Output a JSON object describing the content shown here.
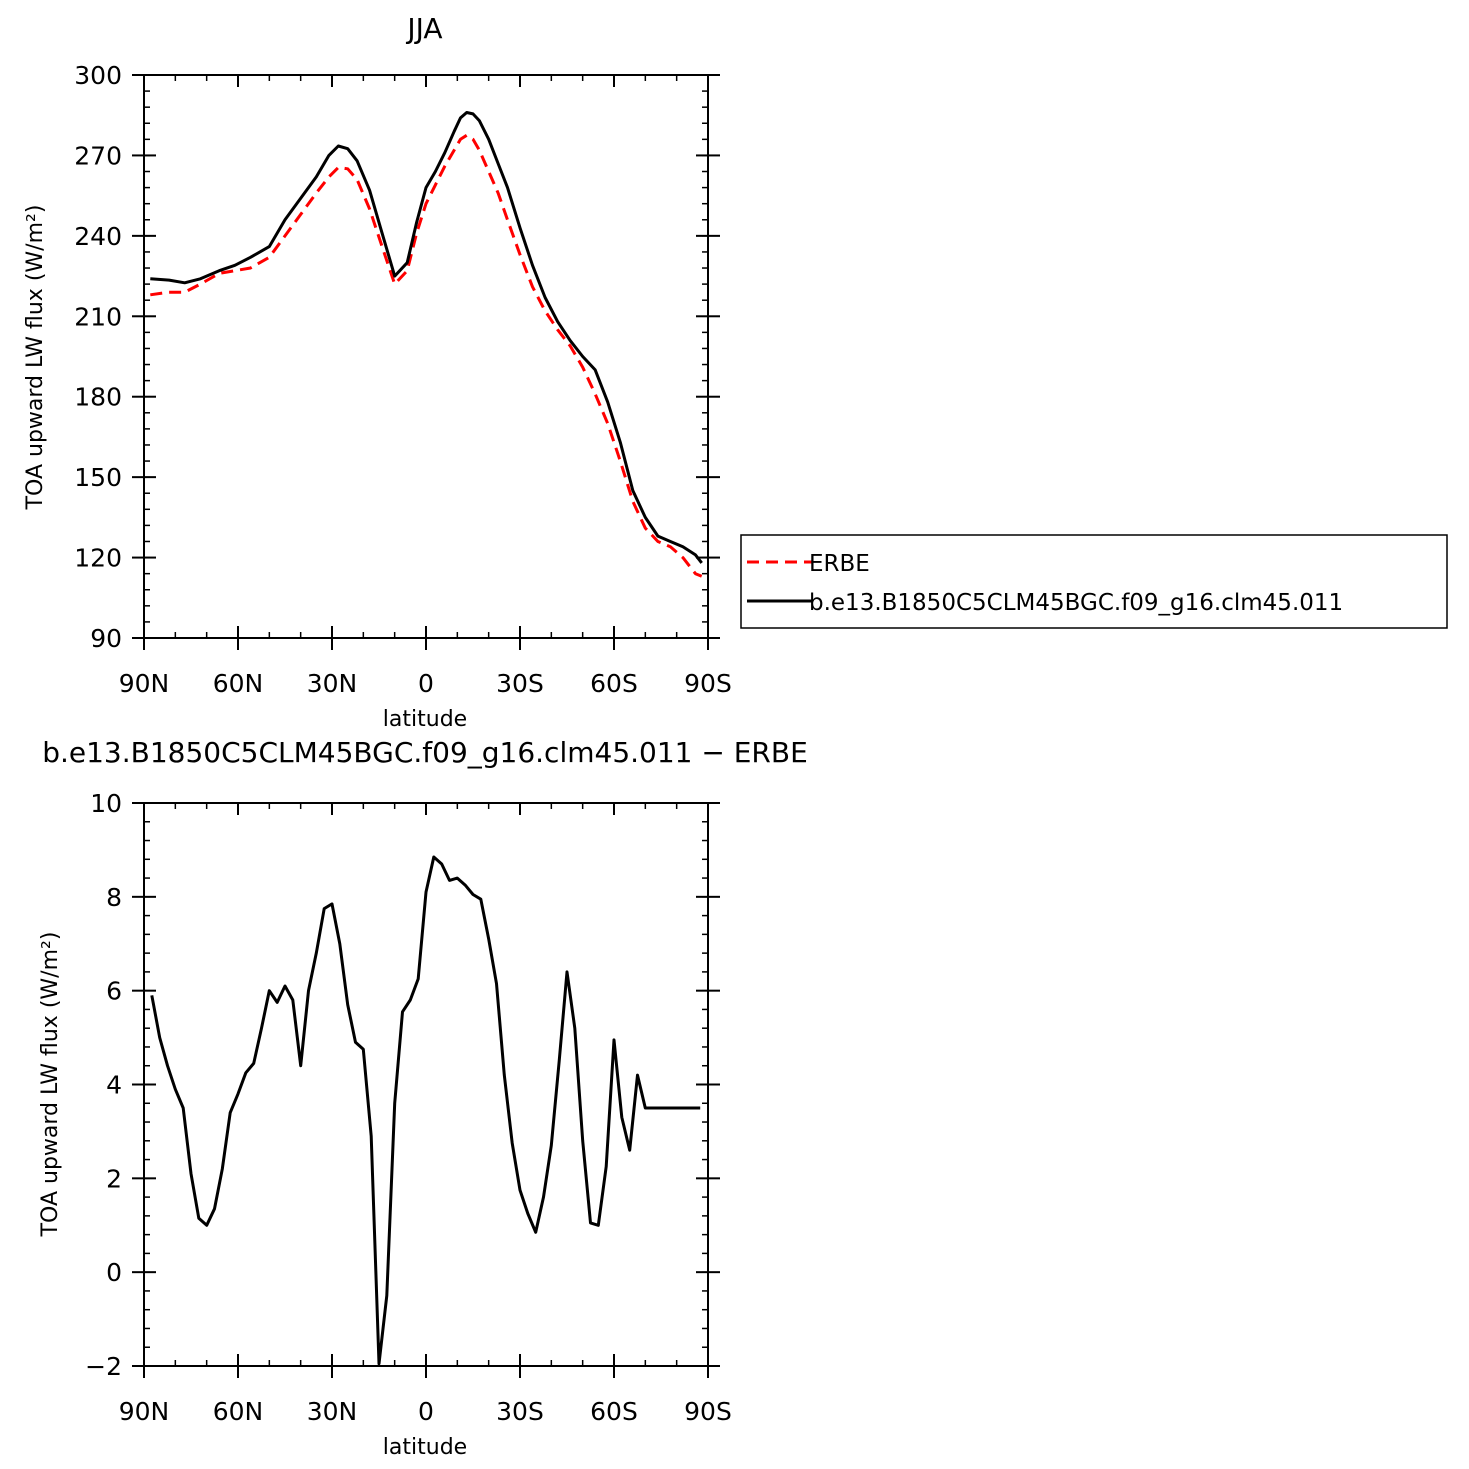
{
  "chart_data": [
    {
      "type": "line",
      "title": "JJA",
      "xlabel": "latitude",
      "ylabel": "TOA upward LW flux (W/m²)",
      "xlim": [
        90,
        -90
      ],
      "ylim": [
        90,
        300
      ],
      "xticks": [
        90,
        60,
        30,
        0,
        -30,
        -60,
        -90
      ],
      "xtick_labels": [
        "90N",
        "60N",
        "30N",
        "0",
        "30S",
        "60S",
        "90S"
      ],
      "yticks": [
        90,
        120,
        150,
        180,
        210,
        240,
        270,
        300
      ],
      "ytick_labels": [
        "90",
        "120",
        "150",
        "180",
        "210",
        "240",
        "270",
        "300"
      ],
      "grid": false,
      "legend_position": "right",
      "legend": [
        "ERBE",
        "b.e13.B1850C5CLM45BGC.f09_g16.clm45.011"
      ],
      "x": [
        88,
        82,
        77,
        72,
        66,
        61,
        56,
        50,
        45,
        40,
        35,
        31,
        28,
        25,
        22,
        18,
        14,
        10,
        6,
        3,
        0,
        -3,
        -6,
        -9,
        -11,
        -13,
        -15,
        -17,
        -20,
        -23,
        -26,
        -30,
        -34,
        -38,
        -42,
        -46,
        -50,
        -54,
        -58,
        -62,
        -66,
        -70,
        -74,
        -78,
        -82,
        -86,
        -88
      ],
      "series": [
        {
          "name": "ERBE",
          "color": "#ff0000",
          "dash": "dashed",
          "values": [
            218,
            219,
            219,
            222,
            226,
            227,
            228,
            232,
            240,
            248,
            256,
            262,
            265.5,
            265,
            261,
            250,
            236,
            222,
            227,
            241,
            252,
            259,
            266,
            272,
            276,
            277.5,
            276,
            272,
            264,
            256,
            246,
            233,
            221,
            212,
            205,
            199,
            191,
            181,
            170,
            156,
            141,
            131,
            126,
            124,
            120,
            114,
            113
          ]
        },
        {
          "name": "b.e13.B1850C5CLM45BGC.f09_g16.clm45.011",
          "color": "#000000",
          "dash": "solid",
          "values": [
            224,
            223.5,
            222.5,
            224,
            227,
            229,
            232,
            236,
            246,
            254,
            262,
            270,
            273.5,
            272.5,
            268,
            257,
            241,
            225,
            230,
            245,
            258,
            264,
            271,
            279,
            284,
            286,
            285.5,
            283,
            276,
            267,
            258,
            243,
            229,
            217,
            208,
            201,
            195,
            190,
            178,
            163,
            145,
            135,
            128,
            126,
            124,
            121,
            118
          ]
        }
      ]
    },
    {
      "type": "line",
      "title": "b.e13.B1850C5CLM45BGC.f09_g16.clm45.011 − ERBE",
      "xlabel": "latitude",
      "ylabel": "TOA upward LW flux (W/m²)",
      "xlim": [
        90,
        -90
      ],
      "ylim": [
        -2,
        10
      ],
      "xticks": [
        90,
        60,
        30,
        0,
        -30,
        -60,
        -90
      ],
      "xtick_labels": [
        "90N",
        "60N",
        "30N",
        "0",
        "30S",
        "60S",
        "90S"
      ],
      "yticks": [
        -2,
        0,
        2,
        4,
        6,
        8,
        10
      ],
      "ytick_labels": [
        "−2",
        "0",
        "2",
        "4",
        "6",
        "8",
        "10"
      ],
      "grid": false,
      "x": [
        87.5,
        85,
        82.5,
        80,
        77.5,
        75,
        72.5,
        70,
        67.5,
        65,
        62.5,
        60,
        57.5,
        55,
        52.5,
        50,
        47.5,
        45,
        42.5,
        40,
        37.5,
        35,
        32.5,
        30,
        27.5,
        25,
        22.5,
        20,
        17.5,
        15,
        12.5,
        10,
        7.5,
        5,
        2.5,
        0,
        -2.5,
        -5,
        -7.5,
        -10,
        -12.5,
        -15,
        -17.5,
        -20,
        -22.5,
        -25,
        -27.5,
        -30,
        -32.5,
        -35,
        -37.5,
        -40,
        -42.5,
        -45,
        -47.5,
        -50,
        -52.5,
        -55,
        -57.5,
        -60,
        -62.5,
        -65,
        -67.5,
        -70,
        -72.5,
        -75,
        -77.5,
        -80,
        -82.5,
        -85,
        -87.5
      ],
      "series": [
        {
          "name": "",
          "color": "#000000",
          "dash": "solid",
          "values": [
            5.9,
            5.0,
            4.4,
            3.9,
            3.5,
            2.1,
            1.15,
            1.0,
            1.35,
            2.2,
            3.4,
            3.8,
            4.25,
            4.45,
            5.2,
            6.0,
            5.75,
            6.1,
            5.8,
            4.4,
            6.0,
            6.8,
            7.75,
            7.85,
            7.0,
            5.7,
            4.9,
            4.75,
            2.9,
            -1.95,
            -0.5,
            3.6,
            5.55,
            5.8,
            6.25,
            8.1,
            8.85,
            8.7,
            8.35,
            8.4,
            8.25,
            8.05,
            7.95,
            7.1,
            6.15,
            4.2,
            2.75,
            1.75,
            1.25,
            0.85,
            1.6,
            2.7,
            4.5,
            6.4,
            5.2,
            2.8,
            1.05,
            1.0,
            2.25,
            4.95,
            3.3,
            2.6,
            4.2,
            3.5,
            3.5,
            3.5,
            3.5,
            3.5,
            3.5,
            3.5,
            3.5
          ]
        }
      ]
    }
  ]
}
